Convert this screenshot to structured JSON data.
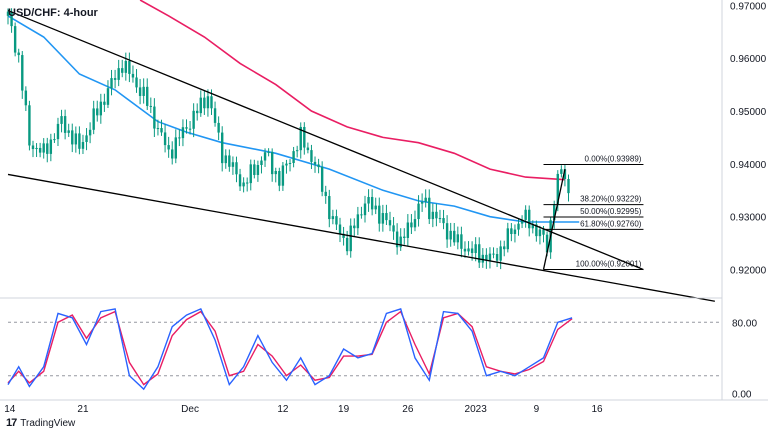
{
  "colors": {
    "candle": "#089981",
    "ema_fast": "#2196f3",
    "ema_slow": "#e91e63",
    "stoch_k": "#2962ff",
    "stoch_d": "#e91e63",
    "trendline": "#000000",
    "fib": "#000000",
    "grid_dash": "#9598a1"
  },
  "branding": {
    "icon": "tradingview-logo-icon",
    "label": "TradingView"
  },
  "chart_data": {
    "type": "candlestick",
    "title": "USD/CHF: 4-hour",
    "x_axis_labels": [
      "14",
      "21",
      "Dec",
      "12",
      "19",
      "26",
      "2023",
      "9",
      "16"
    ],
    "y_axis": {
      "range": [
        0.915,
        0.971
      ],
      "ticks": [
        "0.97000",
        "0.96000",
        "0.95000",
        "0.94000",
        "0.93000",
        "0.92000"
      ]
    },
    "price_path": [
      [
        0,
        0.968
      ],
      [
        3,
        0.96
      ],
      [
        6,
        0.944
      ],
      [
        10,
        0.942
      ],
      [
        15,
        0.948
      ],
      [
        20,
        0.943
      ],
      [
        25,
        0.95
      ],
      [
        32,
        0.959
      ],
      [
        38,
        0.953
      ],
      [
        45,
        0.942
      ],
      [
        50,
        0.947
      ],
      [
        56,
        0.953
      ],
      [
        60,
        0.942
      ],
      [
        66,
        0.936
      ],
      [
        72,
        0.942
      ],
      [
        76,
        0.937
      ],
      [
        82,
        0.945
      ],
      [
        86,
        0.94
      ],
      [
        91,
        0.929
      ],
      [
        95,
        0.925
      ],
      [
        100,
        0.933
      ],
      [
        105,
        0.93
      ],
      [
        110,
        0.925
      ],
      [
        116,
        0.933
      ],
      [
        121,
        0.929
      ],
      [
        126,
        0.925
      ],
      [
        131,
        0.923
      ],
      [
        136,
        0.922
      ],
      [
        140,
        0.926
      ],
      [
        144,
        0.93
      ],
      [
        149,
        0.927
      ],
      [
        151,
        0.924
      ],
      [
        153,
        0.934
      ],
      [
        155,
        0.939
      ],
      [
        157,
        0.935
      ]
    ],
    "ema_fast": [
      [
        0,
        0.968
      ],
      [
        10,
        0.964
      ],
      [
        20,
        0.957
      ],
      [
        30,
        0.954
      ],
      [
        42,
        0.948
      ],
      [
        50,
        0.946
      ],
      [
        60,
        0.944
      ],
      [
        75,
        0.942
      ],
      [
        90,
        0.939
      ],
      [
        105,
        0.935
      ],
      [
        115,
        0.933
      ],
      [
        125,
        0.932
      ],
      [
        135,
        0.93
      ],
      [
        145,
        0.929
      ],
      [
        160,
        0.929
      ]
    ],
    "ema_slow": [
      [
        37,
        0.971
      ],
      [
        45,
        0.968
      ],
      [
        55,
        0.964
      ],
      [
        65,
        0.959
      ],
      [
        75,
        0.955
      ],
      [
        85,
        0.95
      ],
      [
        95,
        0.947
      ],
      [
        105,
        0.945
      ],
      [
        115,
        0.944
      ],
      [
        125,
        0.942
      ],
      [
        135,
        0.939
      ],
      [
        145,
        0.9375
      ],
      [
        156,
        0.937
      ]
    ],
    "trendlines": [
      {
        "from": [
          0,
          0.969
        ],
        "to": [
          178,
          0.92
        ]
      },
      {
        "from": [
          0,
          0.938
        ],
        "to": [
          198,
          0.914
        ]
      },
      {
        "from": [
          150,
          0.92
        ],
        "to": [
          156,
          0.939
        ]
      }
    ],
    "fib_levels": [
      {
        "label": "0.00%(0.93989)",
        "price": 0.93989
      },
      {
        "label": "38.20%(0.93229)",
        "price": 0.93229
      },
      {
        "label": "50.00%(0.92995)",
        "price": 0.92995
      },
      {
        "label": "61.80%(0.92760)",
        "price": 0.9276
      },
      {
        "label": "100.00%(0.92001)",
        "price": 0.92001
      }
    ],
    "stochastic": {
      "y_ticks": [
        "80.00",
        "0.00"
      ],
      "range": [
        -5,
        105
      ],
      "k": [
        [
          0,
          10
        ],
        [
          3,
          30
        ],
        [
          6,
          8
        ],
        [
          10,
          30
        ],
        [
          14,
          90
        ],
        [
          18,
          85
        ],
        [
          22,
          55
        ],
        [
          26,
          92
        ],
        [
          30,
          95
        ],
        [
          34,
          20
        ],
        [
          38,
          5
        ],
        [
          42,
          30
        ],
        [
          46,
          75
        ],
        [
          50,
          88
        ],
        [
          54,
          95
        ],
        [
          58,
          60
        ],
        [
          62,
          10
        ],
        [
          66,
          30
        ],
        [
          70,
          65
        ],
        [
          74,
          35
        ],
        [
          78,
          15
        ],
        [
          82,
          40
        ],
        [
          86,
          10
        ],
        [
          90,
          20
        ],
        [
          94,
          50
        ],
        [
          98,
          40
        ],
        [
          102,
          45
        ],
        [
          106,
          90
        ],
        [
          110,
          95
        ],
        [
          114,
          40
        ],
        [
          118,
          15
        ],
        [
          122,
          92
        ],
        [
          126,
          90
        ],
        [
          130,
          70
        ],
        [
          134,
          20
        ],
        [
          138,
          25
        ],
        [
          142,
          20
        ],
        [
          146,
          30
        ],
        [
          150,
          40
        ],
        [
          154,
          80
        ],
        [
          158,
          85
        ]
      ],
      "d": [
        [
          0,
          12
        ],
        [
          3,
          25
        ],
        [
          6,
          12
        ],
        [
          10,
          25
        ],
        [
          14,
          80
        ],
        [
          18,
          88
        ],
        [
          22,
          62
        ],
        [
          26,
          85
        ],
        [
          30,
          92
        ],
        [
          34,
          35
        ],
        [
          38,
          10
        ],
        [
          42,
          22
        ],
        [
          46,
          65
        ],
        [
          50,
          83
        ],
        [
          54,
          92
        ],
        [
          58,
          70
        ],
        [
          62,
          20
        ],
        [
          66,
          25
        ],
        [
          70,
          55
        ],
        [
          74,
          42
        ],
        [
          78,
          20
        ],
        [
          82,
          32
        ],
        [
          86,
          15
        ],
        [
          90,
          18
        ],
        [
          94,
          42
        ],
        [
          98,
          42
        ],
        [
          102,
          44
        ],
        [
          106,
          80
        ],
        [
          110,
          92
        ],
        [
          114,
          55
        ],
        [
          118,
          22
        ],
        [
          122,
          85
        ],
        [
          126,
          90
        ],
        [
          130,
          75
        ],
        [
          134,
          30
        ],
        [
          138,
          25
        ],
        [
          142,
          22
        ],
        [
          146,
          27
        ],
        [
          150,
          36
        ],
        [
          154,
          72
        ],
        [
          158,
          84
        ]
      ]
    }
  }
}
